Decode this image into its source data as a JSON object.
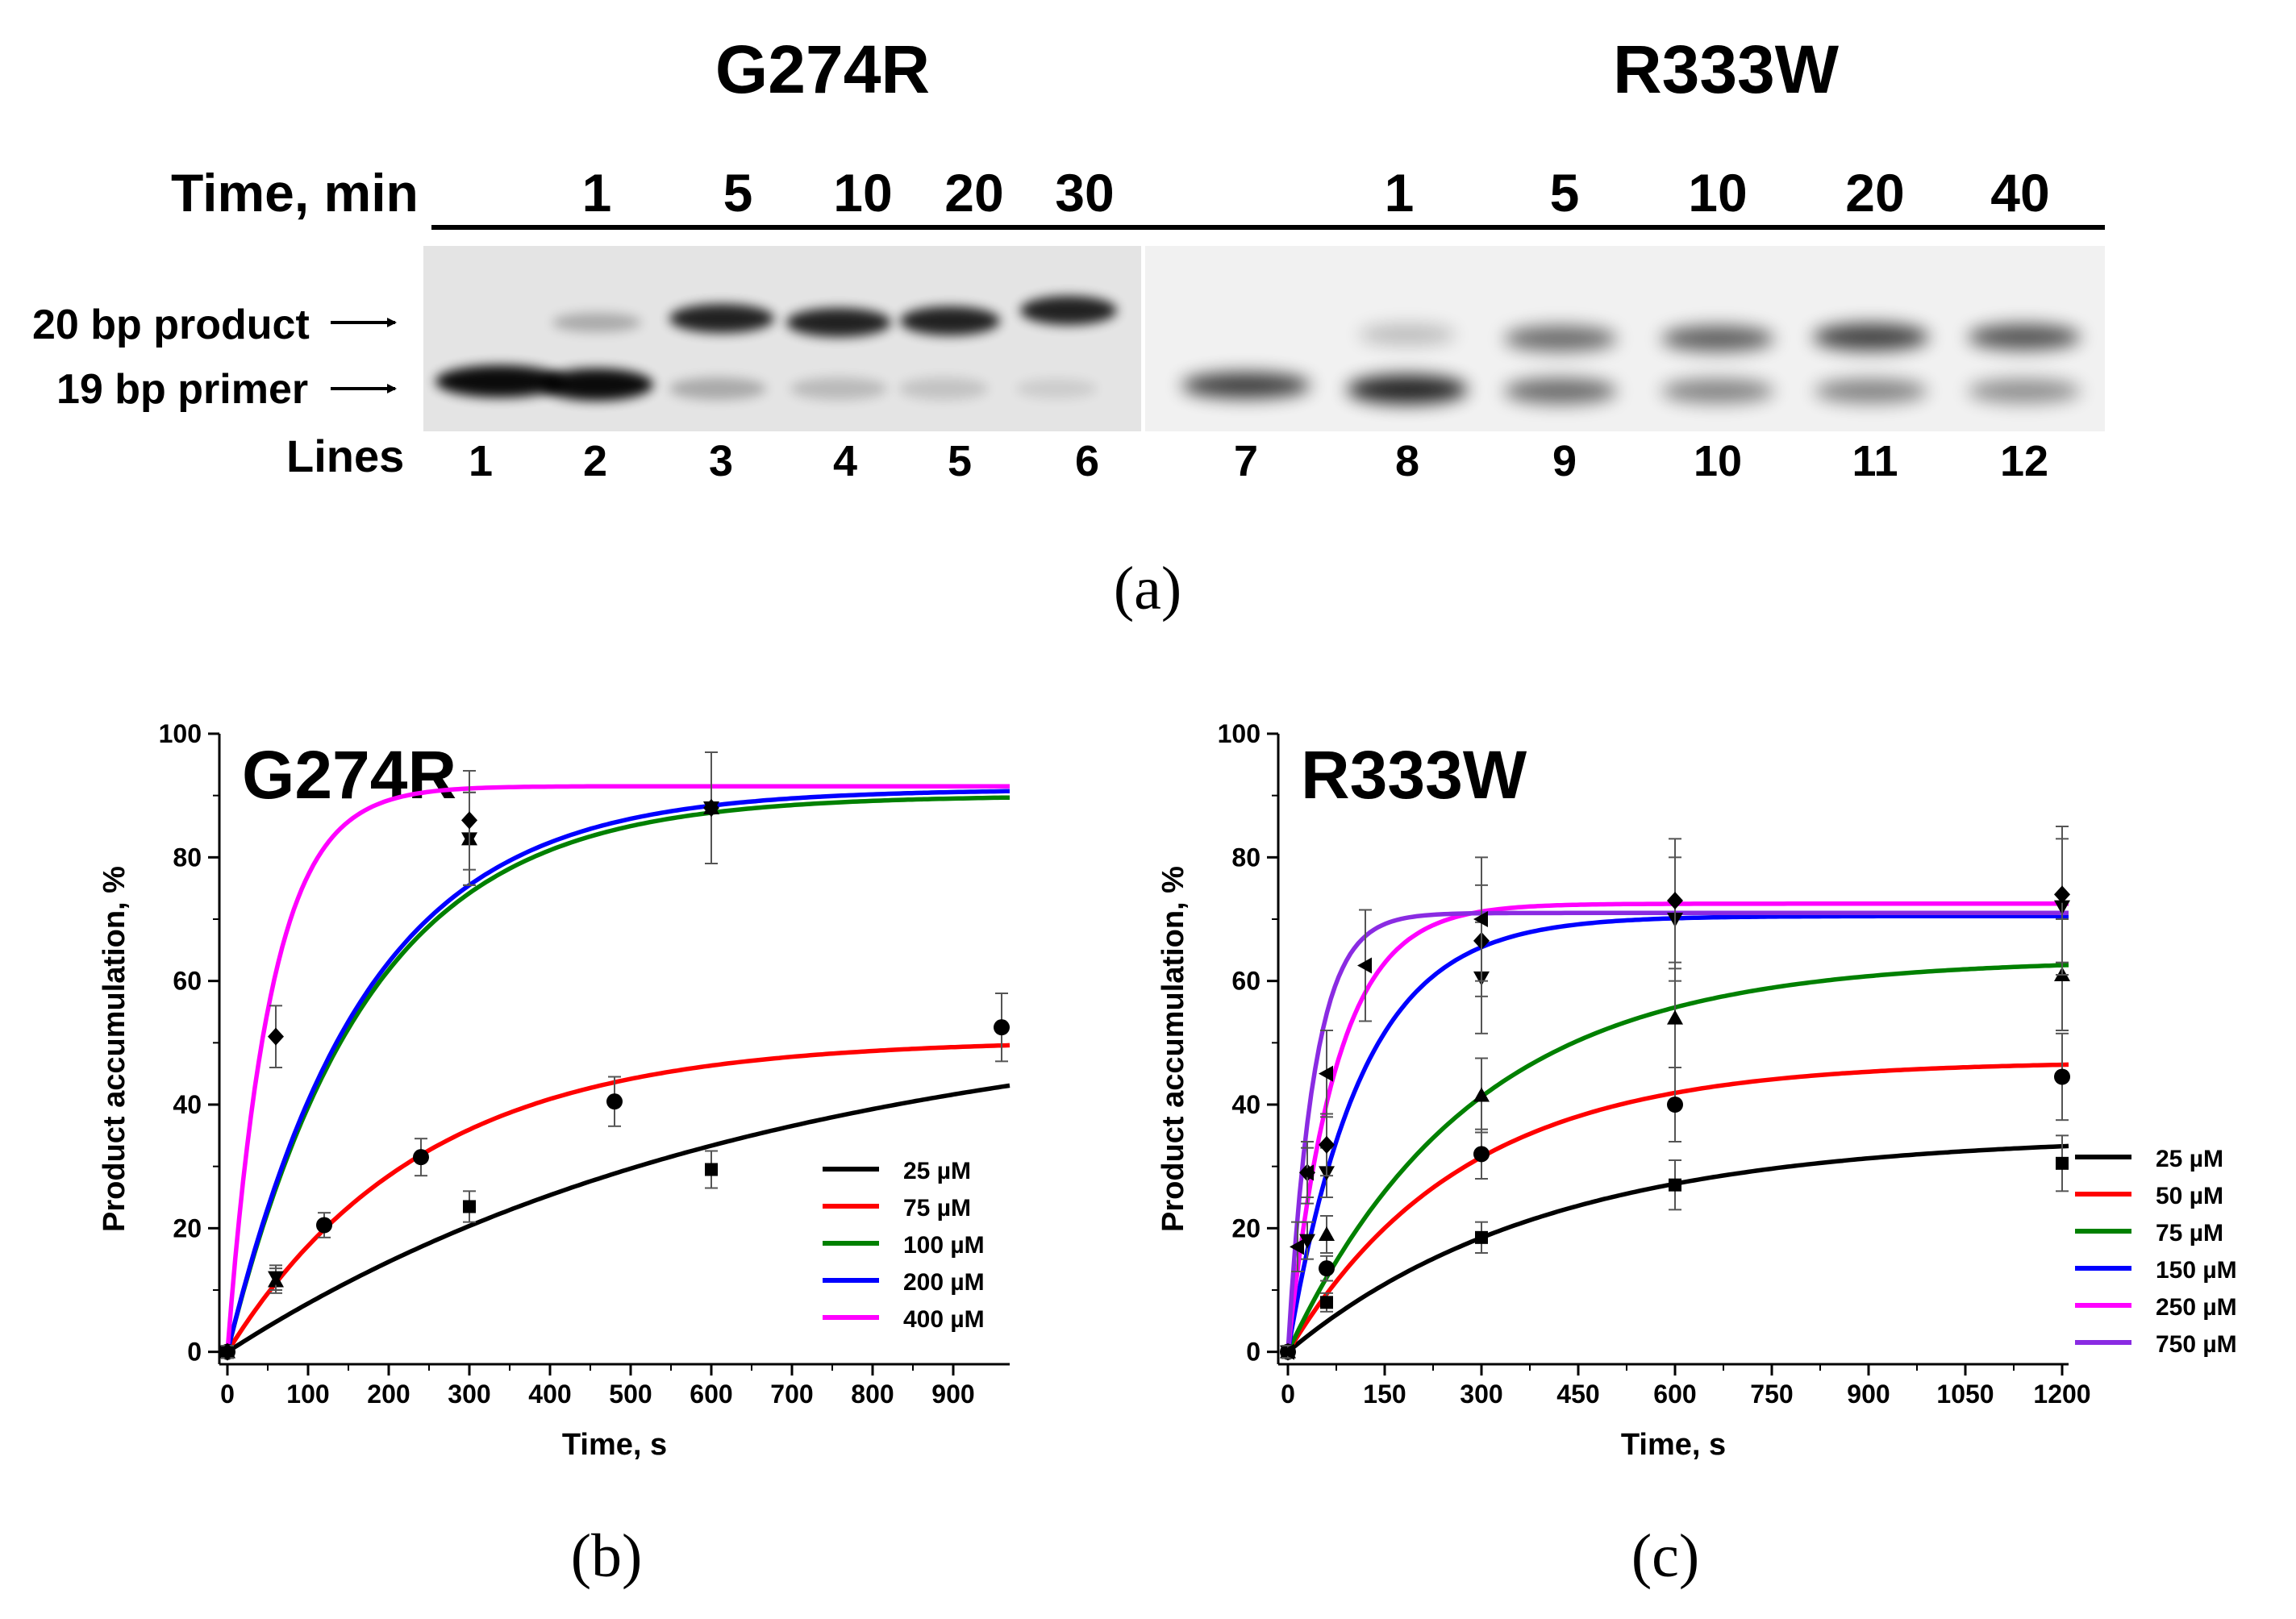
{
  "panel_a": {
    "caption": "(a)",
    "gel_left": {
      "title": "G274R",
      "times": [
        "1",
        "5",
        "10",
        "20",
        "30"
      ],
      "lines": [
        "1",
        "2",
        "3",
        "4",
        "5",
        "6"
      ]
    },
    "gel_right": {
      "title": "R333W",
      "times": [
        "1",
        "5",
        "10",
        "20",
        "40"
      ],
      "lines": [
        "7",
        "8",
        "9",
        "10",
        "11",
        "12"
      ]
    },
    "time_label": "Time, min",
    "lines_label": "Lines",
    "product_label": "20 bp product",
    "primer_label": "19 bp primer"
  },
  "chart_data": [
    {
      "type": "line",
      "panel": "(b)",
      "title": "G274R",
      "xlabel": "Time, s",
      "ylabel": "Product accumulation, %",
      "xlim": [
        -10,
        970
      ],
      "ylim": [
        -2,
        100
      ],
      "xticks": [
        0,
        100,
        200,
        300,
        400,
        500,
        600,
        700,
        800,
        900
      ],
      "yticks": [
        0,
        20,
        40,
        60,
        80,
        100
      ],
      "legend": "bottom-right",
      "series": [
        {
          "name": "25 µM",
          "color": "#000000",
          "fit": {
            "A": 56.2,
            "k": 0.0015
          },
          "marker": "square",
          "x": [
            0,
            300,
            600
          ],
          "y": [
            0,
            23.5,
            29.5
          ],
          "err": [
            1,
            2.5,
            3
          ]
        },
        {
          "name": "75 µM",
          "color": "#ff0000",
          "fit": {
            "A": 50.5,
            "k": 0.00415
          },
          "marker": "circle",
          "x": [
            0,
            120,
            240,
            480,
            960
          ],
          "y": [
            0,
            20.5,
            31.5,
            40.5,
            52.5
          ],
          "err": [
            1,
            2,
            3,
            4,
            5.5
          ]
        },
        {
          "name": "100 µM",
          "color": "#008000",
          "fit": {
            "A": 90.0,
            "k": 0.0058
          },
          "marker": "triangle-up",
          "x": [
            0,
            60,
            300,
            600
          ],
          "y": [
            0,
            11.5,
            83,
            88
          ],
          "err": [
            1,
            2,
            7.5,
            9
          ]
        },
        {
          "name": "200 µM",
          "color": "#0000ff",
          "fit": {
            "A": 91.0,
            "k": 0.0059
          },
          "marker": "triangle-down",
          "x": [
            0,
            60,
            300,
            600
          ],
          "y": [
            0,
            12,
            83,
            88
          ],
          "err": [
            1,
            2,
            7.5,
            9
          ]
        },
        {
          "name": "400 µM",
          "color": "#ff00ff",
          "fit": {
            "A": 91.5,
            "k": 0.0185
          },
          "marker": "diamond",
          "x": [
            0,
            60,
            300,
            600
          ],
          "y": [
            0,
            51,
            86,
            88
          ],
          "err": [
            1,
            5,
            8,
            9
          ]
        }
      ]
    },
    {
      "type": "line",
      "panel": "(c)",
      "title": "R333W",
      "xlabel": "Time, s",
      "ylabel": "Product accumulation, %",
      "xlim": [
        -15,
        1210
      ],
      "ylim": [
        -2,
        100
      ],
      "xticks": [
        0,
        150,
        300,
        450,
        600,
        750,
        900,
        1050,
        1200
      ],
      "yticks": [
        0,
        20,
        40,
        60,
        80,
        100
      ],
      "legend": "bottom-right",
      "series": [
        {
          "name": "25 µM",
          "color": "#000000",
          "fit": {
            "A": 35.0,
            "k": 0.0025
          },
          "marker": "square",
          "x": [
            0,
            60,
            300,
            600,
            1200
          ],
          "y": [
            0,
            8,
            18.5,
            27,
            30.5
          ],
          "err": [
            1,
            1.5,
            2.5,
            4,
            4.5
          ]
        },
        {
          "name": "50 µM",
          "color": "#ff0000",
          "fit": {
            "A": 47.0,
            "k": 0.0037
          },
          "marker": "circle",
          "x": [
            0,
            60,
            300,
            600,
            1200
          ],
          "y": [
            0,
            13.5,
            32,
            40,
            44.5
          ],
          "err": [
            1,
            2,
            4,
            6,
            7
          ]
        },
        {
          "name": "75 µM",
          "color": "#008000",
          "fit": {
            "A": 63.5,
            "k": 0.0035
          },
          "marker": "triangle-up",
          "x": [
            0,
            60,
            300,
            600,
            1200
          ],
          "y": [
            0,
            19,
            41.5,
            54,
            61
          ],
          "err": [
            1,
            3,
            6,
            8,
            9
          ]
        },
        {
          "name": "150 µM",
          "color": "#0000ff",
          "fit": {
            "A": 70.5,
            "k": 0.0088
          },
          "marker": "triangle-down",
          "x": [
            0,
            30,
            60,
            300,
            600,
            1200
          ],
          "y": [
            0,
            18,
            29,
            60.5,
            70,
            72
          ],
          "err": [
            1,
            3,
            4,
            9,
            10,
            11
          ]
        },
        {
          "name": "250 µM",
          "color": "#ff00ff",
          "fit": {
            "A": 72.5,
            "k": 0.0135
          },
          "marker": "diamond",
          "x": [
            0,
            30,
            60,
            300,
            600,
            1200
          ],
          "y": [
            0,
            29,
            33.5,
            66.5,
            73,
            74
          ],
          "err": [
            1,
            4,
            5,
            9,
            10,
            11
          ]
        },
        {
          "name": "750 µM",
          "color": "#8a2be2",
          "fit": {
            "A": 71.0,
            "k": 0.0245
          },
          "marker": "triangle-left",
          "x": [
            0,
            15,
            30,
            60,
            120,
            300
          ],
          "y": [
            0,
            17,
            29,
            45,
            62.5,
            70
          ],
          "err": [
            1,
            4,
            5,
            7,
            9,
            10
          ]
        }
      ]
    }
  ]
}
